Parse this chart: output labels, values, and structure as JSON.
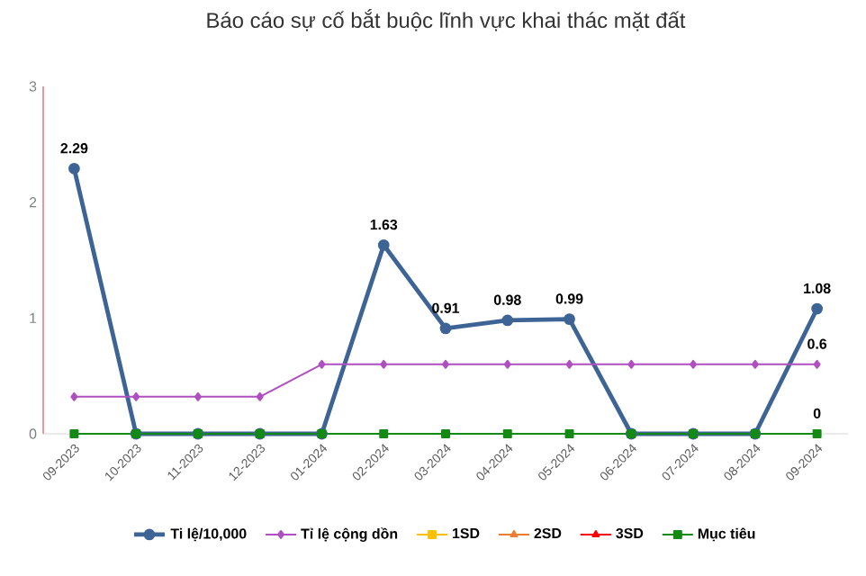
{
  "chart_data": {
    "type": "line",
    "title": "Báo cáo sự cố bắt buộc lĩnh vực khai thác mặt đất",
    "categories": [
      "09-2023",
      "10-2023",
      "11-2023",
      "12-2023",
      "01-2024",
      "02-2024",
      "03-2024",
      "04-2024",
      "05-2024",
      "06-2024",
      "07-2024",
      "08-2024",
      "09-2024"
    ],
    "series": [
      {
        "name": "Ti lệ/10,000",
        "color": "#3e6496",
        "marker": "circle",
        "values": [
          2.29,
          0,
          0,
          0,
          0,
          1.63,
          0.91,
          0.98,
          0.99,
          0,
          0,
          0,
          1.08
        ],
        "value_labels": [
          "2.29",
          null,
          null,
          null,
          null,
          "1.63",
          "0.91",
          "0.98",
          "0.99",
          null,
          null,
          null,
          "1.08"
        ]
      },
      {
        "name": "Tỉ lệ cộng dồn",
        "color": "#b04fc0",
        "marker": "diamond",
        "values": [
          0.32,
          0.32,
          0.32,
          0.32,
          0.6,
          0.6,
          0.6,
          0.6,
          0.6,
          0.6,
          0.6,
          0.6,
          0.6
        ],
        "value_labels": [
          null,
          null,
          null,
          null,
          null,
          null,
          null,
          null,
          null,
          null,
          null,
          null,
          "0.6"
        ]
      },
      {
        "name": "1SD",
        "color": "#ffc000",
        "marker": "square",
        "values": [
          null,
          null,
          null,
          null,
          null,
          null,
          null,
          null,
          null,
          null,
          null,
          null,
          null
        ]
      },
      {
        "name": "2SD",
        "color": "#ed7d31",
        "marker": "triangle",
        "values": [
          null,
          null,
          null,
          null,
          null,
          null,
          null,
          null,
          null,
          null,
          null,
          null,
          null
        ]
      },
      {
        "name": "3SD",
        "color": "#ff0000",
        "marker": "triangle",
        "values": [
          null,
          null,
          null,
          null,
          null,
          null,
          null,
          null,
          null,
          null,
          null,
          null,
          null
        ]
      },
      {
        "name": "Mục tiêu",
        "color": "#138a13",
        "marker": "square",
        "values": [
          0,
          0,
          0,
          0,
          0,
          0,
          0,
          0,
          0,
          0,
          0,
          0,
          0
        ],
        "value_labels": [
          null,
          null,
          null,
          null,
          null,
          null,
          null,
          null,
          null,
          null,
          null,
          null,
          "0"
        ]
      }
    ],
    "ylim": [
      0,
      3
    ],
    "yticks": [
      0,
      1,
      2,
      3
    ],
    "grid": false,
    "legend": "bottom"
  }
}
